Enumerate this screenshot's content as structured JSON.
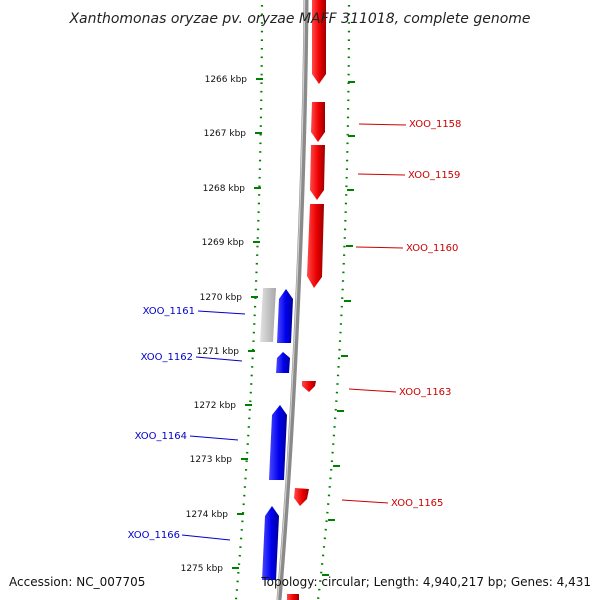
{
  "title": "Xanthomonas oryzae pv. oryzae MAFF 311018, complete genome",
  "footer": {
    "accession": "Accession: NC_007705",
    "summary": "Topology: circular; Length: 4,940,217 bp; Genes: 4,431"
  },
  "colors": {
    "forward_gene": "#ff0000",
    "reverse_gene": "#0000ff",
    "pseudo_gene": "#c8c8c8",
    "backbone": "#888888",
    "dotted_track": "#008000"
  },
  "ruler": [
    {
      "label": "1266 kbp"
    },
    {
      "label": "1267 kbp"
    },
    {
      "label": "1268 kbp"
    },
    {
      "label": "1269 kbp"
    },
    {
      "label": "1270 kbp"
    },
    {
      "label": "1271 kbp"
    },
    {
      "label": "1272 kbp"
    },
    {
      "label": "1273 kbp"
    },
    {
      "label": "1274 kbp"
    },
    {
      "label": "1275 kbp"
    }
  ],
  "genes_forward": [
    {
      "label": "XOO_1158"
    },
    {
      "label": "XOO_1159"
    },
    {
      "label": "XOO_1160"
    },
    {
      "label": "XOO_1163"
    },
    {
      "label": "XOO_1165"
    }
  ],
  "genes_reverse": [
    {
      "label": "XOO_1161"
    },
    {
      "label": "XOO_1162"
    },
    {
      "label": "XOO_1164"
    },
    {
      "label": "XOO_1166"
    }
  ]
}
